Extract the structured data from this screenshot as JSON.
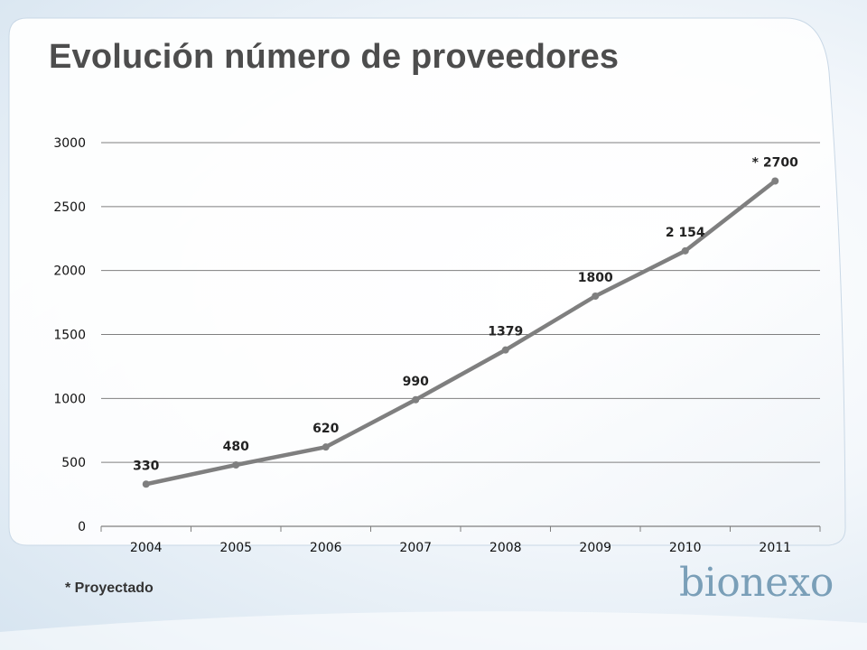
{
  "title": "Evolución número de proveedores",
  "footnote": "* Proyectado",
  "logo_text": "bionexo",
  "colors": {
    "line": "#7f7f7f",
    "grid": "#7f7f7f",
    "title": "#4d4d4d",
    "logo": "#7a9fb8"
  },
  "chart_data": {
    "type": "line",
    "categories": [
      "2004",
      "2005",
      "2006",
      "2007",
      "2008",
      "2009",
      "2010",
      "2011"
    ],
    "series": [
      {
        "values": [
          330,
          480,
          620,
          990,
          1379,
          1800,
          2154,
          2700
        ]
      }
    ],
    "data_labels": [
      "330",
      "480",
      "620",
      "990",
      "1379",
      "1800",
      "2 154",
      "* 2700"
    ],
    "yticks": [
      "0",
      "500",
      "1000",
      "1500",
      "2000",
      "2500",
      "3000"
    ],
    "ylim": [
      0,
      3000
    ],
    "grid": "horizontal",
    "legend": "none",
    "title": "",
    "xlabel": "",
    "ylabel": ""
  }
}
